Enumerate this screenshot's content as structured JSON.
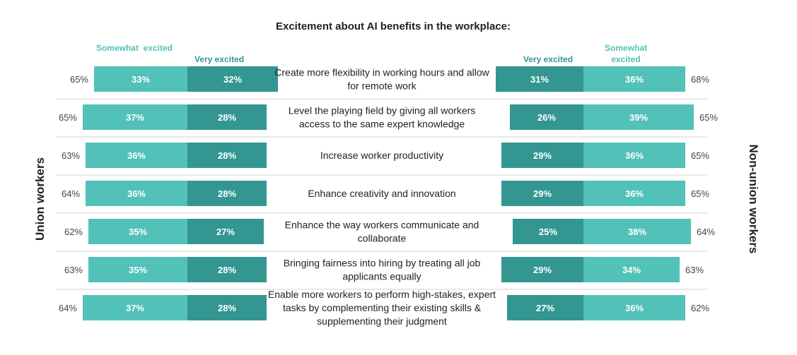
{
  "chart_data": {
    "type": "bar",
    "title": "Excitement about AI benefits in the workplace:",
    "left_group_label": "Union workers",
    "right_group_label": "Non-union workers",
    "legend_left": {
      "somewhat": "Somewhat  excited",
      "very": "Very excited"
    },
    "legend_right": {
      "very": "Very excited",
      "somewhat": "Somewhat excited"
    },
    "colors": {
      "very": "#339690",
      "somewhat": "#52c1b8"
    },
    "categories": [
      "Create more flexibility in working hours and allow for remote work",
      "Level the playing field by giving all workers access to the same expert knowledge",
      "Increase worker productivity",
      "Enhance creativity and innovation",
      "Enhance the way workers communicate and collaborate",
      "Bringing fairness into hiring by treating all job applicants equally",
      "Enable more workers to perform high-stakes, expert tasks by complementing their existing skills & supplementing their judgment"
    ],
    "series": [
      {
        "name": "Union workers - Somewhat excited",
        "values": [
          33,
          37,
          36,
          36,
          35,
          35,
          37
        ]
      },
      {
        "name": "Union workers - Very excited",
        "values": [
          32,
          28,
          28,
          28,
          27,
          28,
          28
        ]
      },
      {
        "name": "Non-union workers - Very excited",
        "values": [
          31,
          26,
          29,
          29,
          25,
          29,
          27
        ]
      },
      {
        "name": "Non-union workers - Somewhat excited",
        "values": [
          36,
          39,
          36,
          36,
          38,
          34,
          36
        ]
      }
    ],
    "totals_left": [
      65,
      65,
      63,
      64,
      62,
      63,
      64
    ],
    "totals_right": [
      68,
      65,
      65,
      65,
      64,
      63,
      62
    ]
  }
}
